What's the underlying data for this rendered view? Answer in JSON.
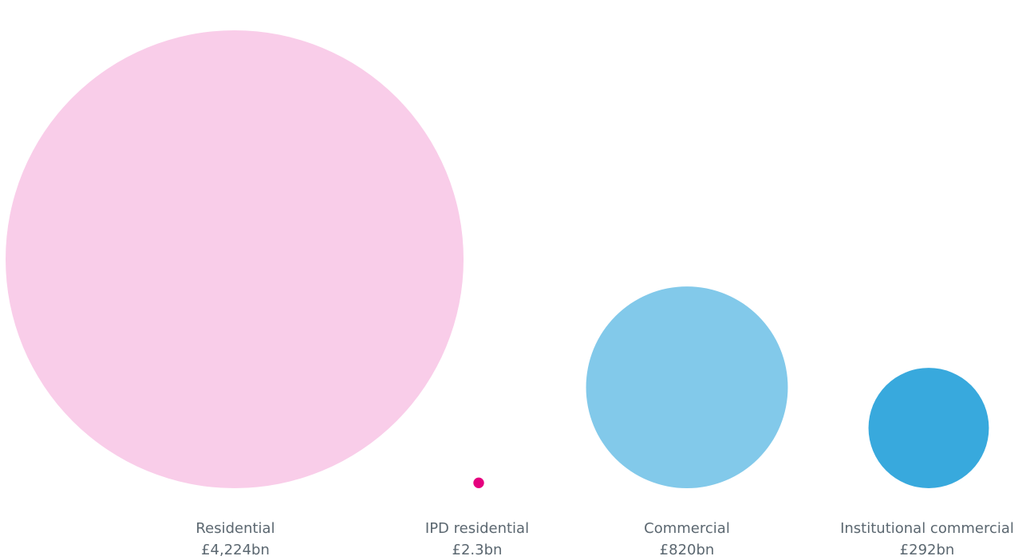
{
  "chart_data": {
    "type": "bubble",
    "categories": [
      "Residential",
      "IPD residential",
      "Commercial",
      "Institutional commercial"
    ],
    "values": [
      4224,
      2.3,
      820,
      292
    ],
    "value_labels": [
      "£4,224bn",
      "£2.3bn",
      "£820bn",
      "£292bn"
    ],
    "colors": [
      "#f9cde9",
      "#e5007e",
      "#82c9ea",
      "#38a9dd"
    ]
  }
}
